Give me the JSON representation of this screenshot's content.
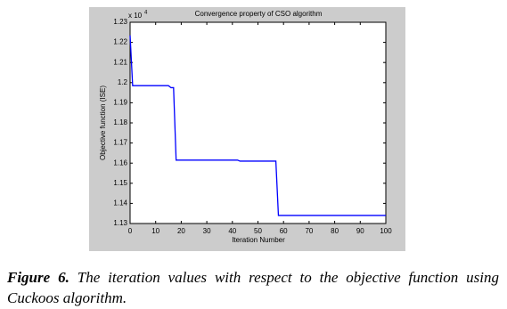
{
  "chart_data": {
    "type": "line",
    "title": "Convergence property of CSO algorithm",
    "x_label": "Iteration Number",
    "y_label": "Objective function (ISE)",
    "y_multiplier": "x 10",
    "y_multiplier_exponent": "4",
    "x": [
      0,
      1,
      15,
      16,
      17,
      18,
      42,
      43,
      57,
      58,
      100
    ],
    "series": [
      {
        "name": "CSO",
        "color": "#0000ff",
        "values": [
          1.2235,
          1.1985,
          1.1985,
          1.1975,
          1.1975,
          1.1615,
          1.1615,
          1.161,
          1.161,
          1.134,
          1.134
        ]
      }
    ],
    "xlim": [
      0,
      100
    ],
    "xticks": [
      0,
      10,
      20,
      30,
      40,
      50,
      60,
      70,
      80,
      90,
      100
    ],
    "ylim": [
      1.13,
      1.23
    ],
    "yticks": [
      1.13,
      1.14,
      1.15,
      1.16,
      1.17,
      1.18,
      1.19,
      1.2,
      1.21,
      1.22,
      1.23
    ],
    "grid": false
  },
  "caption": {
    "label": "Figure 6.",
    "text": "The iteration values with respect to the objective function using Cuckoos algorithm."
  }
}
